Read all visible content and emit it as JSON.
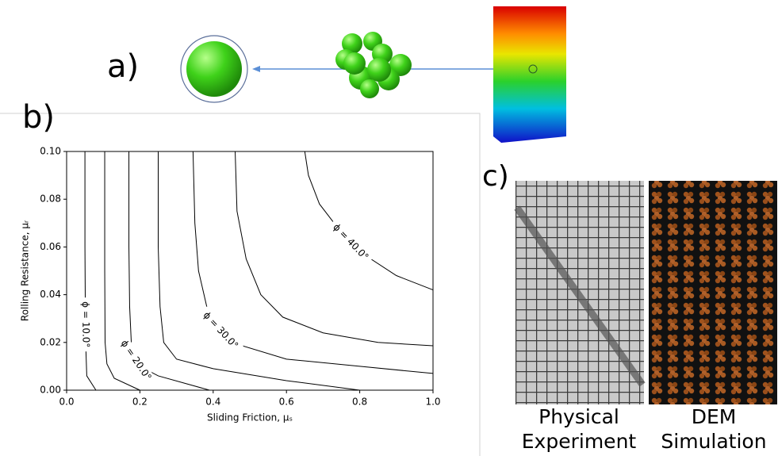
{
  "panels": {
    "a": "a)",
    "b": "b)",
    "c": "c)"
  },
  "captions": {
    "physical": [
      "Physical",
      "Experiment"
    ],
    "dem": [
      "DEM",
      "Simulation"
    ]
  },
  "chart_data": {
    "type": "contour",
    "xlabel": "Sliding Friction, μₛ",
    "ylabel": "Rolling Resistance, μᵣ",
    "xlim": [
      0,
      1
    ],
    "ylim": [
      0,
      0.1
    ],
    "xticks": [
      {
        "value": 0,
        "label": "0.0"
      },
      {
        "value": 0.2,
        "label": "0.2"
      },
      {
        "value": 0.4,
        "label": "0.4"
      },
      {
        "value": 0.6,
        "label": "0.6"
      },
      {
        "value": 0.8,
        "label": "0.8"
      },
      {
        "value": 1,
        "label": "1.0"
      }
    ],
    "yticks": [
      {
        "value": 0,
        "label": "0.00"
      },
      {
        "value": 0.02,
        "label": "0.02"
      },
      {
        "value": 0.04,
        "label": "0.04"
      },
      {
        "value": 0.06,
        "label": "0.06"
      },
      {
        "value": 0.08,
        "label": "0.08"
      },
      {
        "value": 0.1,
        "label": "0.10"
      }
    ],
    "color": "#000000",
    "series": [
      {
        "name": "ϕ = 10.0°",
        "x": [
          0.05,
          0.05,
          0.051,
          0.052,
          0.055,
          0.08
        ],
        "y": [
          0.1,
          0.06,
          0.035,
          0.02,
          0.006,
          0
        ]
      },
      {
        "x": [
          0.104,
          0.104,
          0.105,
          0.11,
          0.13,
          0.2
        ],
        "y": [
          0.1,
          0.05,
          0.02,
          0.011,
          0.005,
          0
        ]
      },
      {
        "name": "ϕ = 20.0°",
        "x": [
          0.17,
          0.17,
          0.172,
          0.178,
          0.2,
          0.25,
          0.39
        ],
        "y": [
          0.1,
          0.06,
          0.035,
          0.015,
          0.01,
          0.006,
          0
        ]
      },
      {
        "x": [
          0.25,
          0.25,
          0.255,
          0.265,
          0.3,
          0.4,
          0.6,
          0.8
        ],
        "y": [
          0.1,
          0.06,
          0.035,
          0.02,
          0.013,
          0.009,
          0.004,
          0
        ]
      },
      {
        "name": "ϕ = 30.0°",
        "x": [
          0.345,
          0.35,
          0.36,
          0.39,
          0.45,
          0.6,
          0.8,
          1.0
        ],
        "y": [
          0.1,
          0.07,
          0.05,
          0.03,
          0.02,
          0.013,
          0.01,
          0.007
        ]
      },
      {
        "x": [
          0.46,
          0.465,
          0.49,
          0.53,
          0.59,
          0.7,
          0.85,
          1.0
        ],
        "y": [
          0.1,
          0.075,
          0.055,
          0.04,
          0.0306,
          0.024,
          0.02,
          0.0186
        ]
      },
      {
        "name": "ϕ = 40.0°",
        "x": [
          0.65,
          0.66,
          0.69,
          0.75,
          0.8,
          0.9,
          1.0
        ],
        "y": [
          0.1,
          0.09,
          0.078,
          0.066,
          0.058,
          0.048,
          0.042
        ]
      }
    ]
  }
}
